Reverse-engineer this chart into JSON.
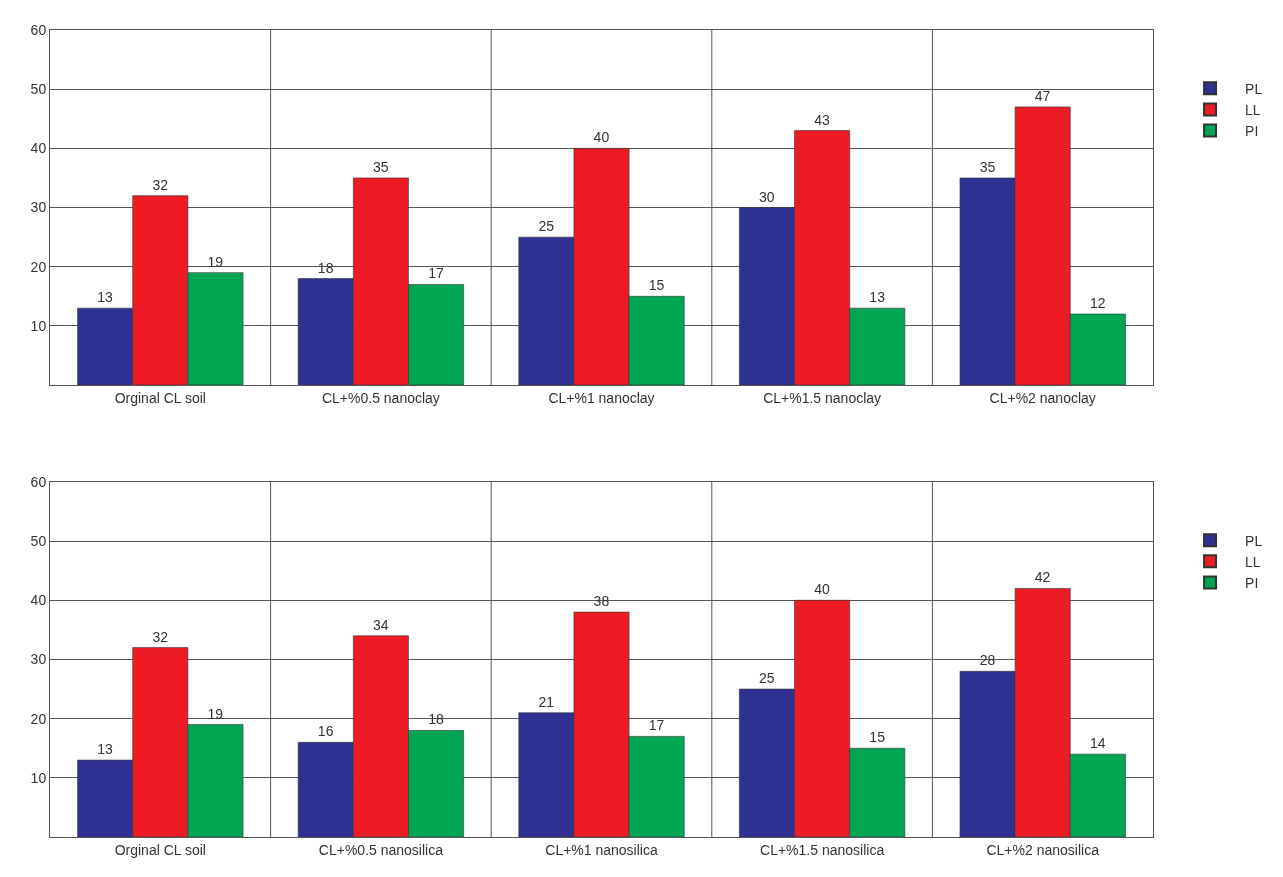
{
  "chart_data": [
    {
      "type": "bar",
      "categories": [
        "Orginal CL soil",
        "CL+%0.5 nanoclay",
        "CL+%1 nanoclay",
        "CL+%1.5 nanoclay",
        "CL+%2 nanoclay"
      ],
      "series": [
        {
          "name": "PL",
          "color": "#2e3192",
          "values": [
            13,
            18,
            25,
            30,
            35
          ]
        },
        {
          "name": "LL",
          "color": "#ed1c24",
          "values": [
            32,
            35,
            40,
            43,
            47
          ]
        },
        {
          "name": "PI",
          "color": "#00a651",
          "values": [
            19,
            17,
            15,
            13,
            12
          ]
        }
      ],
      "ylim": [
        0,
        60
      ],
      "yticks": [
        10,
        20,
        30,
        40,
        50,
        60
      ],
      "grid": "y",
      "legend": "right",
      "data_labels": true
    },
    {
      "type": "bar",
      "categories": [
        "Orginal CL soil",
        "CL+%0.5 nanosilica",
        "CL+%1 nanosilica",
        "CL+%1.5 nanosilica",
        "CL+%2 nanosilica"
      ],
      "series": [
        {
          "name": "PL",
          "color": "#2e3192",
          "values": [
            13,
            16,
            21,
            25,
            28
          ]
        },
        {
          "name": "LL",
          "color": "#ed1c24",
          "values": [
            32,
            34,
            38,
            40,
            42
          ]
        },
        {
          "name": "PI",
          "color": "#00a651",
          "values": [
            19,
            18,
            17,
            15,
            14
          ]
        }
      ],
      "ylim": [
        0,
        60
      ],
      "yticks": [
        10,
        20,
        30,
        40,
        50,
        60
      ],
      "grid": "y",
      "legend": "right",
      "data_labels": true
    }
  ]
}
